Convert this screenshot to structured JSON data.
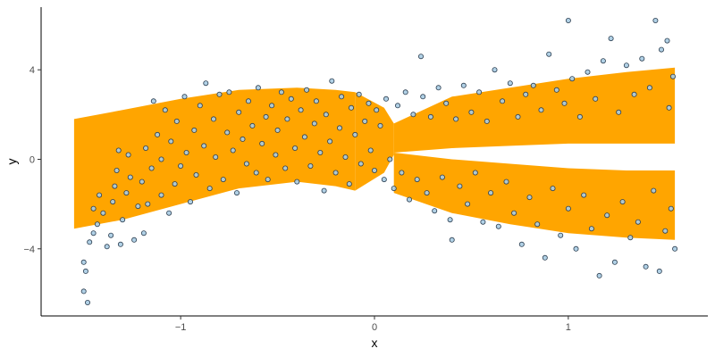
{
  "chart_data": {
    "type": "scatter",
    "title": "",
    "xlabel": "x",
    "ylabel": "y",
    "xlim": [
      -1.72,
      1.72
    ],
    "ylim": [
      -7.0,
      6.8
    ],
    "grid": false,
    "legend": "none",
    "x_ticks": [
      {
        "value": -1,
        "label": "−1"
      },
      {
        "value": 0,
        "label": "0"
      },
      {
        "value": 1,
        "label": "1"
      }
    ],
    "y_ticks": [
      {
        "value": -4,
        "label": "−4"
      },
      {
        "value": 0,
        "label": "0"
      },
      {
        "value": 4,
        "label": "4"
      }
    ],
    "band_color": "#FFA500",
    "point_fill": "#A9CCE3",
    "point_stroke": "#2C3E50",
    "bands": [
      {
        "x": [
          -1.55,
          -1.3,
          -1.0,
          -0.7,
          -0.4,
          -0.2,
          -0.1
        ],
        "lower": [
          -3.1,
          -2.7,
          -2.0,
          -1.3,
          -1.0,
          -1.2,
          -1.4
        ],
        "upper": [
          1.8,
          2.2,
          2.7,
          3.1,
          3.2,
          3.1,
          3.0
        ]
      },
      {
        "x": [
          -0.1,
          0.05,
          0.1
        ],
        "lower": [
          -1.4,
          -0.6,
          0.2
        ],
        "upper": [
          3.0,
          2.3,
          1.6
        ]
      },
      {
        "x": [
          0.1,
          0.4,
          0.7,
          1.0,
          1.3,
          1.55
        ],
        "lower": [
          0.3,
          0.5,
          0.6,
          0.7,
          0.7,
          0.7
        ],
        "upper": [
          1.6,
          2.8,
          3.2,
          3.6,
          3.9,
          4.1
        ]
      },
      {
        "x": [
          0.1,
          0.4,
          0.7,
          1.0,
          1.3,
          1.55
        ],
        "lower": [
          -1.5,
          -2.4,
          -2.9,
          -3.3,
          -3.5,
          -3.6
        ],
        "upper": [
          0.3,
          0.0,
          -0.2,
          -0.4,
          -0.5,
          -0.5
        ]
      }
    ],
    "points": [
      [
        -1.48,
        -6.4
      ],
      [
        -1.5,
        -5.9
      ],
      [
        -1.5,
        -4.6
      ],
      [
        -1.49,
        -5.0
      ],
      [
        -1.47,
        -3.7
      ],
      [
        -1.45,
        -3.3
      ],
      [
        -1.43,
        -2.9
      ],
      [
        -1.45,
        -2.2
      ],
      [
        -1.42,
        -1.6
      ],
      [
        -1.4,
        -2.4
      ],
      [
        -1.38,
        -3.9
      ],
      [
        -1.36,
        -3.4
      ],
      [
        -1.35,
        -1.9
      ],
      [
        -1.34,
        -1.2
      ],
      [
        -1.33,
        -0.5
      ],
      [
        -1.32,
        0.4
      ],
      [
        -1.31,
        -3.8
      ],
      [
        -1.3,
        -2.7
      ],
      [
        -1.28,
        -1.5
      ],
      [
        -1.27,
        0.2
      ],
      [
        -1.26,
        -0.8
      ],
      [
        -1.24,
        -3.6
      ],
      [
        -1.22,
        -2.1
      ],
      [
        -1.2,
        -1.0
      ],
      [
        -1.19,
        -3.3
      ],
      [
        -1.18,
        0.5
      ],
      [
        -1.17,
        -2.0
      ],
      [
        -1.15,
        -0.4
      ],
      [
        -1.14,
        2.6
      ],
      [
        -1.12,
        1.1
      ],
      [
        -1.1,
        -1.6
      ],
      [
        -1.1,
        0.0
      ],
      [
        -1.08,
        2.2
      ],
      [
        -1.06,
        -2.4
      ],
      [
        -1.05,
        0.8
      ],
      [
        -1.03,
        -1.1
      ],
      [
        -1.02,
        1.7
      ],
      [
        -1.0,
        -0.3
      ],
      [
        -0.98,
        2.8
      ],
      [
        -0.97,
        0.3
      ],
      [
        -0.95,
        -1.9
      ],
      [
        -0.93,
        1.3
      ],
      [
        -0.92,
        -0.7
      ],
      [
        -0.9,
        2.4
      ],
      [
        -0.88,
        0.6
      ],
      [
        -0.87,
        3.4
      ],
      [
        -0.85,
        -1.3
      ],
      [
        -0.83,
        1.8
      ],
      [
        -0.82,
        0.1
      ],
      [
        -0.8,
        2.9
      ],
      [
        -0.78,
        -0.9
      ],
      [
        -0.76,
        1.2
      ],
      [
        -0.75,
        3.0
      ],
      [
        -0.73,
        0.4
      ],
      [
        -0.71,
        -1.5
      ],
      [
        -0.7,
        2.1
      ],
      [
        -0.68,
        0.9
      ],
      [
        -0.66,
        -0.2
      ],
      [
        -0.65,
        2.6
      ],
      [
        -0.63,
        1.5
      ],
      [
        -0.61,
        -0.6
      ],
      [
        -0.6,
        3.2
      ],
      [
        -0.58,
        0.7
      ],
      [
        -0.56,
        1.9
      ],
      [
        -0.55,
        -0.9
      ],
      [
        -0.53,
        2.4
      ],
      [
        -0.51,
        0.2
      ],
      [
        -0.5,
        1.3
      ],
      [
        -0.48,
        3.0
      ],
      [
        -0.46,
        -0.4
      ],
      [
        -0.45,
        1.8
      ],
      [
        -0.43,
        2.7
      ],
      [
        -0.41,
        0.5
      ],
      [
        -0.4,
        -1.0
      ],
      [
        -0.38,
        2.2
      ],
      [
        -0.36,
        1.0
      ],
      [
        -0.35,
        3.1
      ],
      [
        -0.33,
        -0.3
      ],
      [
        -0.31,
        1.6
      ],
      [
        -0.3,
        2.6
      ],
      [
        -0.28,
        0.3
      ],
      [
        -0.26,
        -1.4
      ],
      [
        -0.25,
        2.0
      ],
      [
        -0.23,
        0.8
      ],
      [
        -0.22,
        3.5
      ],
      [
        -0.2,
        -0.6
      ],
      [
        -0.18,
        1.4
      ],
      [
        -0.17,
        2.8
      ],
      [
        -0.15,
        0.1
      ],
      [
        -0.13,
        -1.1
      ],
      [
        -0.12,
        2.3
      ],
      [
        -0.1,
        1.1
      ],
      [
        -0.08,
        2.9
      ],
      [
        -0.07,
        -0.2
      ],
      [
        -0.05,
        1.7
      ],
      [
        -0.03,
        2.5
      ],
      [
        -0.02,
        0.4
      ],
      [
        0.0,
        -0.5
      ],
      [
        0.01,
        2.2
      ],
      [
        0.03,
        1.5
      ],
      [
        0.05,
        -0.9
      ],
      [
        0.06,
        2.7
      ],
      [
        0.08,
        0.0
      ],
      [
        0.1,
        -1.3
      ],
      [
        0.12,
        2.4
      ],
      [
        0.14,
        -0.6
      ],
      [
        0.16,
        3.0
      ],
      [
        0.18,
        -1.8
      ],
      [
        0.2,
        2.0
      ],
      [
        0.22,
        -0.9
      ],
      [
        0.24,
        4.6
      ],
      [
        0.25,
        2.8
      ],
      [
        0.27,
        -1.5
      ],
      [
        0.29,
        1.9
      ],
      [
        0.31,
        -2.3
      ],
      [
        0.33,
        3.2
      ],
      [
        0.35,
        -0.8
      ],
      [
        0.37,
        2.5
      ],
      [
        0.39,
        -2.7
      ],
      [
        0.4,
        -3.6
      ],
      [
        0.42,
        1.8
      ],
      [
        0.44,
        -1.2
      ],
      [
        0.46,
        3.3
      ],
      [
        0.48,
        -2.0
      ],
      [
        0.5,
        2.1
      ],
      [
        0.52,
        -0.6
      ],
      [
        0.54,
        3.0
      ],
      [
        0.56,
        -2.8
      ],
      [
        0.58,
        1.7
      ],
      [
        0.6,
        -1.5
      ],
      [
        0.62,
        4.0
      ],
      [
        0.64,
        -3.0
      ],
      [
        0.66,
        2.6
      ],
      [
        0.68,
        -1.0
      ],
      [
        0.7,
        3.4
      ],
      [
        0.72,
        -2.4
      ],
      [
        0.74,
        1.9
      ],
      [
        0.76,
        -3.8
      ],
      [
        0.78,
        2.9
      ],
      [
        0.8,
        -1.7
      ],
      [
        0.82,
        3.3
      ],
      [
        0.84,
        -2.9
      ],
      [
        0.86,
        2.2
      ],
      [
        0.88,
        -4.4
      ],
      [
        0.9,
        4.7
      ],
      [
        0.92,
        -1.3
      ],
      [
        0.94,
        3.1
      ],
      [
        0.96,
        -3.4
      ],
      [
        0.98,
        2.5
      ],
      [
        1.0,
        -2.2
      ],
      [
        1.0,
        6.2
      ],
      [
        1.02,
        3.6
      ],
      [
        1.04,
        -4.0
      ],
      [
        1.06,
        1.9
      ],
      [
        1.08,
        -1.6
      ],
      [
        1.1,
        3.9
      ],
      [
        1.12,
        -3.1
      ],
      [
        1.14,
        2.7
      ],
      [
        1.16,
        -5.2
      ],
      [
        1.18,
        4.4
      ],
      [
        1.2,
        -2.5
      ],
      [
        1.22,
        5.4
      ],
      [
        1.24,
        -4.6
      ],
      [
        1.26,
        2.1
      ],
      [
        1.28,
        -1.9
      ],
      [
        1.3,
        4.2
      ],
      [
        1.32,
        -3.5
      ],
      [
        1.34,
        2.9
      ],
      [
        1.36,
        -2.8
      ],
      [
        1.38,
        4.5
      ],
      [
        1.4,
        -4.8
      ],
      [
        1.42,
        3.2
      ],
      [
        1.44,
        -1.4
      ],
      [
        1.45,
        6.2
      ],
      [
        1.47,
        -5.0
      ],
      [
        1.48,
        4.9
      ],
      [
        1.5,
        -3.2
      ],
      [
        1.51,
        5.3
      ],
      [
        1.52,
        2.3
      ],
      [
        1.53,
        -2.2
      ],
      [
        1.54,
        3.7
      ],
      [
        1.55,
        -4.0
      ]
    ]
  }
}
